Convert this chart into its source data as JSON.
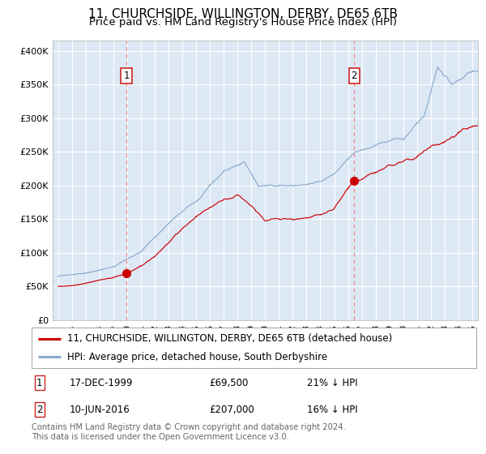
{
  "title": "11, CHURCHSIDE, WILLINGTON, DERBY, DE65 6TB",
  "subtitle": "Price paid vs. HM Land Registry's House Price Index (HPI)",
  "background_color": "#dde8f5",
  "outer_bg_color": "#ffffff",
  "red_line_color": "#cc0000",
  "blue_line_color": "#88aacc",
  "marker_color": "#cc0000",
  "vline_color": "#ee8888",
  "sale1_t": 1999.96,
  "sale1_v": 69500,
  "sale2_t": 2016.45,
  "sale2_v": 207000,
  "yticks": [
    0,
    50000,
    100000,
    150000,
    200000,
    250000,
    300000,
    350000,
    400000
  ],
  "ytick_labels": [
    "£0",
    "£50K",
    "£100K",
    "£150K",
    "£200K",
    "£250K",
    "£300K",
    "£350K",
    "£400K"
  ],
  "xlim_start": 1994.6,
  "xlim_end": 2025.4,
  "ylim_min": 0,
  "ylim_max": 415000,
  "legend_line1": "11, CHURCHSIDE, WILLINGTON, DERBY, DE65 6TB (detached house)",
  "legend_line2": "HPI: Average price, detached house, South Derbyshire",
  "footer": "Contains HM Land Registry data © Crown copyright and database right 2024.\nThis data is licensed under the Open Government Licence v3.0.",
  "title_fontsize": 11,
  "subtitle_fontsize": 9.5,
  "tick_fontsize": 8,
  "legend_fontsize": 8.5,
  "note_fontsize": 8.5,
  "footer_fontsize": 7.2
}
